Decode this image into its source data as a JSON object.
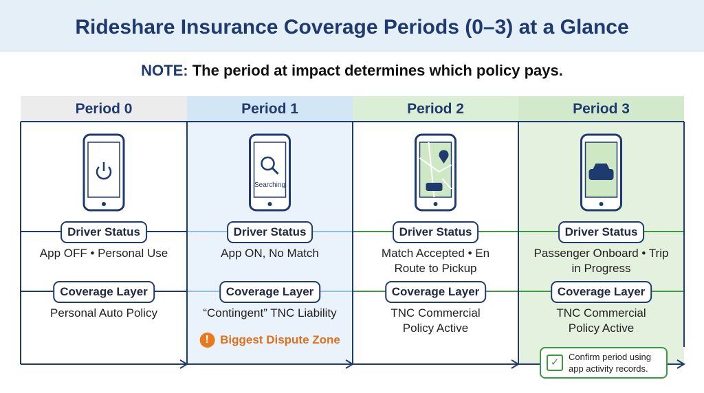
{
  "title": "Rideshare Insurance Coverage Periods (0–3) at a Glance",
  "note": {
    "label": "NOTE:",
    "text": "The period at impact determines which policy pays."
  },
  "periods": [
    {
      "name": "Period 0",
      "status_label": "Driver Status",
      "status": "App OFF • Personal Use",
      "coverage_label": "Coverage Layer",
      "coverage": "Personal Auto Policy"
    },
    {
      "name": "Period 1",
      "phone_text": "Searching",
      "status_label": "Driver Status",
      "status": "App ON, No Match",
      "coverage_label": "Coverage Layer",
      "coverage": "“Contingent” TNC Liability",
      "warning": "Biggest Dispute Zone"
    },
    {
      "name": "Period 2",
      "status_label": "Driver Status",
      "status": "Match Accepted • En Route to Pickup",
      "coverage_label": "Coverage Layer",
      "coverage": "TNC Commercial Policy Active"
    },
    {
      "name": "Period 3",
      "status_label": "Driver Status",
      "status": "Passenger Onboard • Trip in Progress",
      "coverage_label": "Coverage Layer",
      "coverage": "TNC Commercial Policy Active"
    }
  ],
  "tip": "Confirm period using app activity records."
}
